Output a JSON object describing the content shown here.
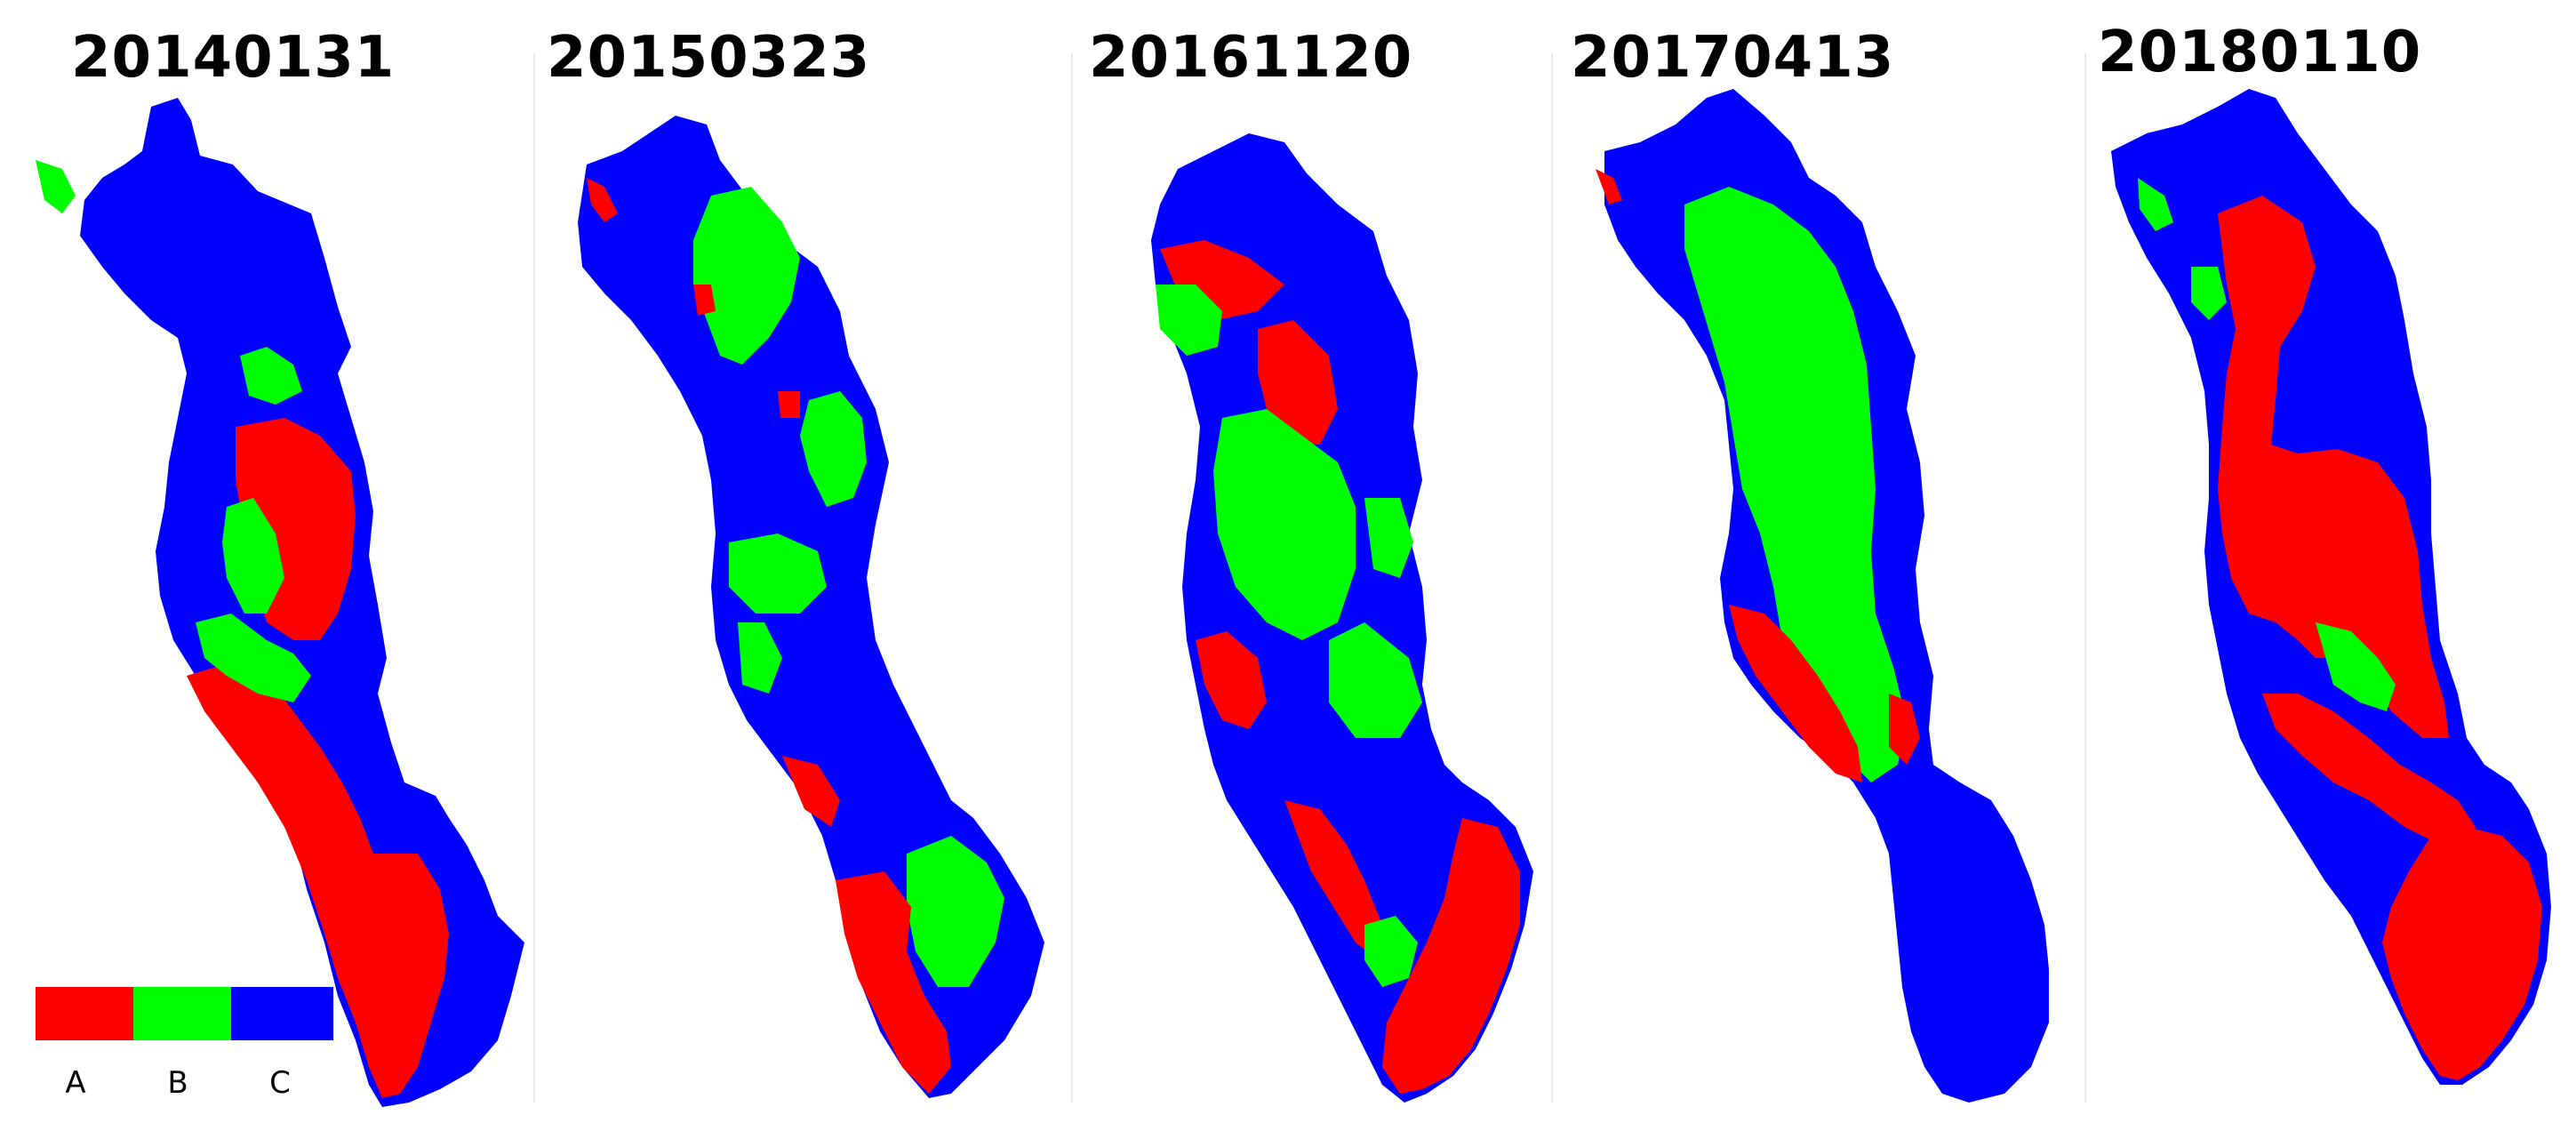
{
  "colors": {
    "A": "#ff0000",
    "B": "#00ff00",
    "C": "#0000ff"
  },
  "panels": [
    {
      "title": "20140131"
    },
    {
      "title": "20150323"
    },
    {
      "title": "20161120"
    },
    {
      "title": "20170413"
    },
    {
      "title": "20180110"
    }
  ],
  "legend": {
    "items": [
      {
        "label": "A",
        "color": "#ff0000"
      },
      {
        "label": "B",
        "color": "#00ff00"
      },
      {
        "label": "C",
        "color": "#0000ff"
      }
    ]
  }
}
